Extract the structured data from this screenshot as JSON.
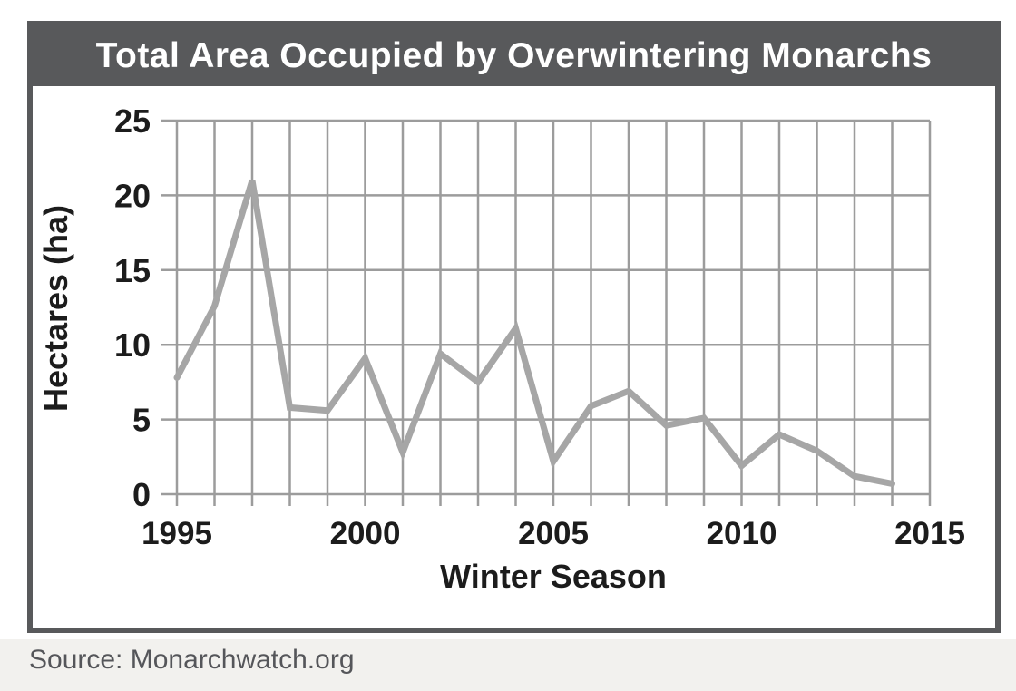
{
  "figure": {
    "title": "Total Area Occupied by Overwintering Monarchs",
    "source_note": "Source: Monarchwatch.org"
  },
  "chart_data": {
    "type": "line",
    "title": "Total Area Occupied by Overwintering Monarchs",
    "xlabel": "Winter Season",
    "ylabel": "Hectares (ha)",
    "series_name": "Total area occupied by overwintering monarchs (ha)",
    "x": [
      1995,
      1996,
      1997,
      1998,
      1999,
      2000,
      2001,
      2002,
      2003,
      2004,
      2005,
      2006,
      2007,
      2008,
      2009,
      2010,
      2011,
      2012,
      2013,
      2014
    ],
    "values": [
      7.8,
      12.6,
      21.0,
      5.8,
      5.6,
      9.1,
      2.8,
      9.4,
      7.5,
      11.1,
      2.2,
      5.9,
      6.9,
      4.6,
      5.1,
      1.9,
      4.0,
      2.9,
      1.2,
      0.7
    ],
    "xlim": [
      1995,
      2015
    ],
    "ylim": [
      0,
      25
    ],
    "x_grid_step": 1,
    "x_tick_labels": [
      1995,
      2000,
      2005,
      2010,
      2015
    ],
    "y_ticks": [
      0,
      5,
      10,
      15,
      20,
      25
    ],
    "grid": true,
    "legend": false
  },
  "colors": {
    "title_bar": "#58595b",
    "chart_text": "#1c1c1c",
    "line": "#a6a6a6",
    "grid": "#9c9c9c",
    "source_text": "#55565a",
    "footer_bg": "#f2f1ee"
  }
}
